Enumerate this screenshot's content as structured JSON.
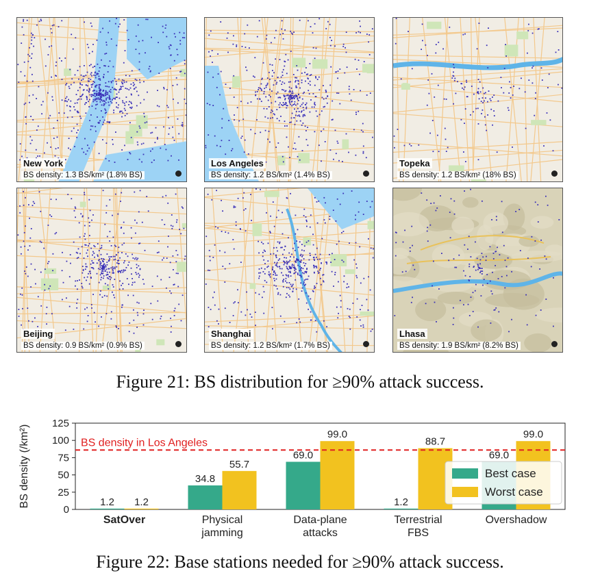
{
  "maps": [
    {
      "city": "New York",
      "density": "BS density: 1.3 BS/km² (1.8% BS)",
      "theme": "water-dense"
    },
    {
      "city": "Los Angeles",
      "density": "BS density: 1.2 BS/km² (1.4% BS)",
      "theme": "coast"
    },
    {
      "city": "Topeka",
      "density": "BS density: 1.2 BS/km² (18% BS)",
      "theme": "river"
    },
    {
      "city": "Beijing",
      "density": "BS density: 0.9 BS/km² (0.9% BS)",
      "theme": "urban"
    },
    {
      "city": "Shanghai",
      "density": "BS density: 1.2 BS/km² (1.7% BS)",
      "theme": "urban-river"
    },
    {
      "city": "Lhasa",
      "density": "BS density: 1.9 BS/km² (8.2% BS)",
      "theme": "terrain"
    }
  ],
  "figure21_caption": "Figure 21: BS distribution for ≥90% attack success.",
  "figure22_caption": "Figure 22: Base stations needed for ≥90% attack success.",
  "chart_data": {
    "type": "bar",
    "categories": [
      "SatOver",
      "Physical\njamming",
      "Data-plane\nattacks",
      "Terrestrial\nFBS",
      "Overshadow"
    ],
    "series": [
      {
        "name": "Best case",
        "values": [
          1.2,
          34.8,
          69.0,
          1.2,
          69.0
        ],
        "labels": [
          "1.2",
          "34.8",
          "69.0",
          "1.2",
          "69.0"
        ],
        "color": "#35a98a"
      },
      {
        "name": "Worst case",
        "values": [
          1.2,
          55.7,
          99.0,
          88.7,
          99.0
        ],
        "labels": [
          "1.2",
          "55.7",
          "99.0",
          "88.7",
          "99.0"
        ],
        "color": "#f2c21f"
      }
    ],
    "ylabel": "BS density (/km²)",
    "ylim": [
      0,
      125
    ],
    "yticks": [
      0,
      25,
      50,
      75,
      100,
      125
    ],
    "reference_line": {
      "value": 86,
      "label": "BS density in Los Angeles",
      "color": "#e02020"
    },
    "legend_position": "right",
    "bold_category": "SatOver"
  }
}
